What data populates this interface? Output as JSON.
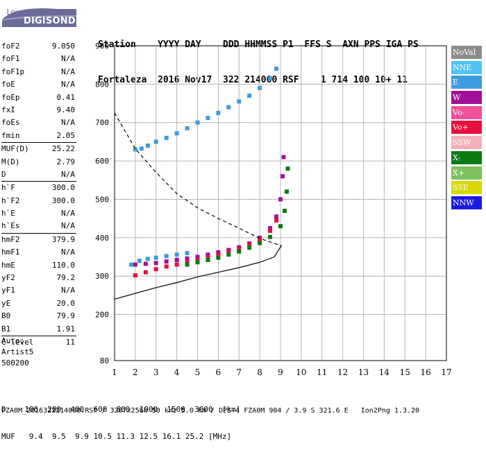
{
  "logo": {
    "top": "Lowell",
    "main": "DIGISONDE"
  },
  "header": {
    "line1": "Station    YYYY DAY    DDD HHMMSS P1  FFS S  AXN PPS IGA PS",
    "line2": "Fortaleza  2016 Nov17  322 214000 RSF    1 714 100 10+ 11"
  },
  "params": [
    {
      "k": "foF2",
      "v": "9.050"
    },
    {
      "k": "foF1",
      "v": "N/A"
    },
    {
      "k": "foF1p",
      "v": "N/A"
    },
    {
      "k": "foE",
      "v": "N/A"
    },
    {
      "k": "foEp",
      "v": "0.41"
    },
    {
      "k": "fxI",
      "v": "9.40"
    },
    {
      "k": "foEs",
      "v": "N/A"
    },
    {
      "k": "fmin",
      "v": "2.05"
    },
    {
      "k": "MUF(D)",
      "v": "25.22",
      "sep": true
    },
    {
      "k": "M(D)",
      "v": "2.79"
    },
    {
      "k": "D",
      "v": "N/A"
    },
    {
      "k": "h`F",
      "v": "300.0",
      "sep": true
    },
    {
      "k": "h`F2",
      "v": "300.0"
    },
    {
      "k": "h`E",
      "v": "N/A"
    },
    {
      "k": "h`Es",
      "v": "N/A"
    },
    {
      "k": "hmF2",
      "v": "379.9",
      "sep": true
    },
    {
      "k": "hmF1",
      "v": "N/A"
    },
    {
      "k": "hmE",
      "v": "110.0"
    },
    {
      "k": "yF2",
      "v": "79.2"
    },
    {
      "k": "yF1",
      "v": "N/A"
    },
    {
      "k": "yE",
      "v": "20.0"
    },
    {
      "k": "B0",
      "v": "79.9"
    },
    {
      "k": "B1",
      "v": "1.91"
    },
    {
      "k": "C-level",
      "v": "11",
      "sep": true
    }
  ],
  "auto": {
    "line1": "Auto:",
    "line2": "Artist5",
    "line3": "500200"
  },
  "legend": [
    {
      "label": "NoVal",
      "color": "#8c8c8c"
    },
    {
      "label": "NNE",
      "color": "#4fc3f7"
    },
    {
      "label": "E",
      "color": "#3d9be0"
    },
    {
      "label": "W",
      "color": "#a0109a"
    },
    {
      "label": "Vo-",
      "color": "#f0509a"
    },
    {
      "label": "Vo+",
      "color": "#e8103c"
    },
    {
      "label": "SSW",
      "color": "#f4b0b8"
    },
    {
      "label": "X-",
      "color": "#0a7a14"
    },
    {
      "label": "X+",
      "color": "#7cc060"
    },
    {
      "label": "SSE",
      "color": "#d8d800"
    },
    {
      "label": "NNW",
      "color": "#1a1ae0"
    }
  ],
  "bottom": {
    "line1": "D    100  200  400  600  800  1000  1500  3000  [km]",
    "line2": "MUF   9.4  9.5  9.9 10.5 11.3 12.5 16.1 25.2 [MHz]"
  },
  "footer": "FZA0M_2016322214000.RSF / 320fx256h 50 kHz 5.0 km / DPS-4 FZA0M 904 / 3.9 S 321.6 E   Ion2Png 1.3.20",
  "chart_data": {
    "type": "scatter",
    "xlim": [
      1,
      17
    ],
    "ylim": [
      80,
      900
    ],
    "xticks": [
      1,
      2,
      3,
      4,
      5,
      6,
      7,
      8,
      9,
      10,
      11,
      12,
      13,
      14,
      15,
      16,
      17
    ],
    "yticks": [
      80,
      200,
      300,
      400,
      500,
      600,
      700,
      800,
      900
    ],
    "grid": true,
    "legend_position": "right",
    "series": [
      {
        "name": "E",
        "color": "#3d9be0",
        "points": [
          [
            2.0,
            630
          ],
          [
            2.3,
            632
          ],
          [
            2.6,
            640
          ],
          [
            3.0,
            650
          ],
          [
            3.5,
            660
          ],
          [
            4.0,
            672
          ],
          [
            4.5,
            685
          ],
          [
            5.0,
            700
          ],
          [
            5.5,
            712
          ],
          [
            6.0,
            725
          ],
          [
            6.5,
            740
          ],
          [
            7.0,
            755
          ],
          [
            7.5,
            770
          ],
          [
            8.0,
            790
          ],
          [
            8.5,
            815
          ],
          [
            8.8,
            840
          ],
          [
            1.8,
            330
          ],
          [
            2.2,
            340
          ],
          [
            2.6,
            345
          ],
          [
            3.0,
            348
          ],
          [
            3.5,
            352
          ],
          [
            4.0,
            356
          ],
          [
            4.5,
            360
          ]
        ]
      },
      {
        "name": "W",
        "color": "#a0109a",
        "points": [
          [
            2.0,
            330
          ],
          [
            2.5,
            332
          ],
          [
            3.0,
            334
          ],
          [
            3.5,
            338
          ],
          [
            4.0,
            342
          ],
          [
            4.5,
            346
          ],
          [
            5.0,
            350
          ],
          [
            5.5,
            356
          ],
          [
            6.0,
            362
          ],
          [
            6.5,
            368
          ],
          [
            7.0,
            375
          ],
          [
            7.5,
            385
          ],
          [
            8.0,
            400
          ],
          [
            8.5,
            425
          ],
          [
            8.8,
            455
          ],
          [
            9.0,
            500
          ],
          [
            9.1,
            560
          ],
          [
            9.15,
            610
          ]
        ]
      },
      {
        "name": "Vo+",
        "color": "#e8103c",
        "points": [
          [
            2.0,
            302
          ],
          [
            2.5,
            310
          ],
          [
            3.0,
            318
          ],
          [
            3.5,
            325
          ],
          [
            4.0,
            330
          ],
          [
            4.5,
            336
          ],
          [
            5.0,
            342
          ],
          [
            5.5,
            348
          ],
          [
            6.0,
            355
          ],
          [
            6.5,
            362
          ],
          [
            7.0,
            370
          ],
          [
            7.5,
            380
          ],
          [
            8.0,
            395
          ],
          [
            8.5,
            418
          ],
          [
            8.8,
            445
          ]
        ]
      },
      {
        "name": "X-",
        "color": "#0a7a14",
        "points": [
          [
            4.5,
            330
          ],
          [
            5.0,
            336
          ],
          [
            5.5,
            342
          ],
          [
            6.0,
            348
          ],
          [
            6.5,
            356
          ],
          [
            7.0,
            364
          ],
          [
            7.5,
            374
          ],
          [
            8.0,
            386
          ],
          [
            8.5,
            402
          ],
          [
            9.0,
            430
          ],
          [
            9.2,
            470
          ],
          [
            9.3,
            520
          ],
          [
            9.35,
            580
          ]
        ]
      }
    ],
    "profile_line": [
      [
        1,
        240
      ],
      [
        2,
        255
      ],
      [
        3,
        270
      ],
      [
        4,
        283
      ],
      [
        5,
        298
      ],
      [
        6,
        310
      ],
      [
        7,
        322
      ],
      [
        8,
        336
      ],
      [
        8.7,
        350
      ],
      [
        9.05,
        379.9
      ]
    ],
    "dashed_line": [
      [
        1,
        725
      ],
      [
        2,
        632
      ],
      [
        3,
        570
      ],
      [
        4,
        515
      ],
      [
        5,
        478
      ],
      [
        6,
        450
      ],
      [
        7,
        425
      ],
      [
        8,
        398
      ],
      [
        9,
        380
      ],
      [
        9.05,
        379.9
      ]
    ]
  }
}
